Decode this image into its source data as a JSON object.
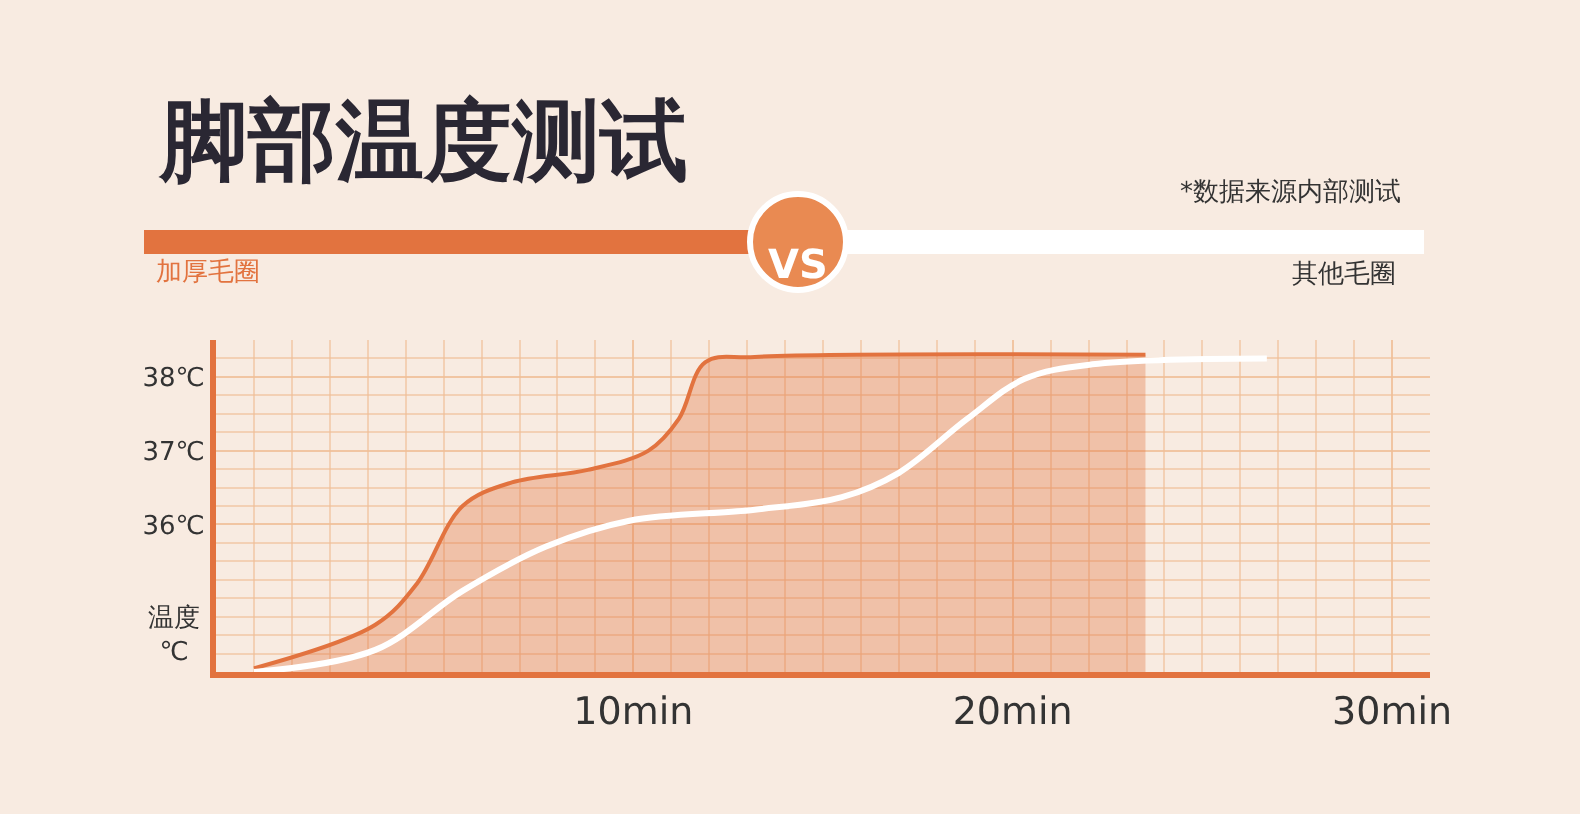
{
  "chart_data": {
    "type": "line",
    "title": "脚部温度测试",
    "ylabel": "温度\n℃",
    "annotations": [
      "*数据来源内部测试",
      "VS"
    ],
    "series": [
      {
        "name": "加厚毛圈",
        "type": "area",
        "color": "#e2733f",
        "x": [
          0,
          3.2,
          4.3,
          5.5,
          6.8,
          8.8,
          10.4,
          11.2,
          11.9,
          13.2,
          23.5
        ],
        "values": [
          34.05,
          34.64,
          35.2,
          36.25,
          36.57,
          36.74,
          37.0,
          37.43,
          38.2,
          38.27,
          38.3
        ]
      },
      {
        "name": "其他毛圈",
        "color": "#ffffff",
        "x": [
          0,
          3.2,
          5.5,
          7.7,
          9.9,
          13.2,
          15.5,
          17,
          18.8,
          20.3,
          22.1,
          26.7
        ],
        "values": [
          34.0,
          34.3,
          35.1,
          35.7,
          36.05,
          36.2,
          36.37,
          36.7,
          37.43,
          37.97,
          38.17,
          38.25
        ]
      }
    ],
    "xlim": [
      -1,
      31
    ],
    "xticks": [
      {
        "value": 10,
        "label": "10min"
      },
      {
        "value": 20,
        "label": "20min"
      },
      {
        "value": 30,
        "label": "30min"
      }
    ],
    "ylim": [
      34,
      38.5
    ],
    "yticks": [
      {
        "value": 36,
        "label": "36℃"
      },
      {
        "value": 37,
        "label": "37℃"
      },
      {
        "value": 38,
        "label": "38℃"
      }
    ],
    "grid": true,
    "legend": "top"
  }
}
